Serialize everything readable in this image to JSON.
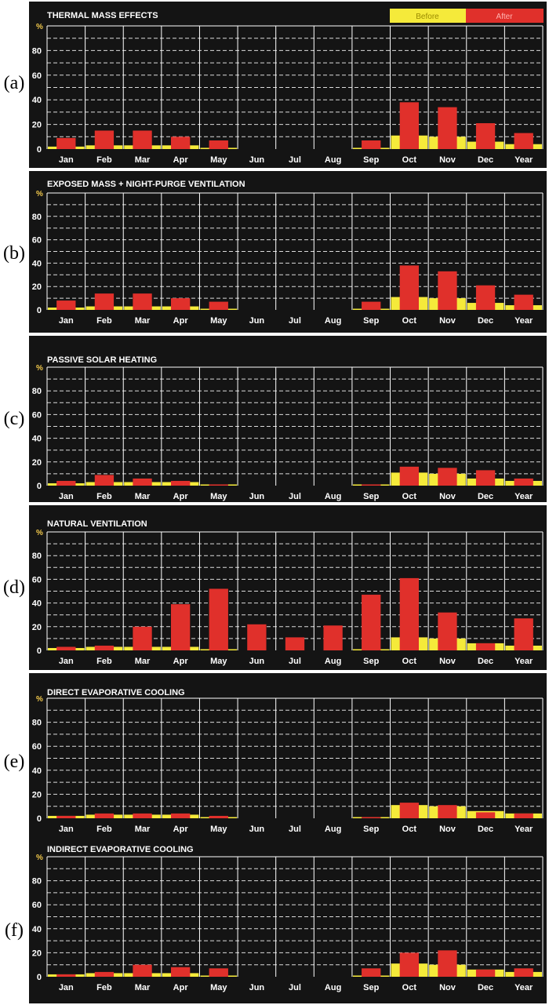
{
  "colors": {
    "background": "#141414",
    "grid": "#ffffff",
    "before": "#f5ea3a",
    "after": "#e0302b",
    "before_text": "#9a8b00",
    "after_text": "#ffb3b0"
  },
  "legend": {
    "before": "Before",
    "after": "After"
  },
  "unit_label": "%",
  "chart_data": [
    {
      "panel_label": "(a)",
      "type": "bar",
      "title": "THERMAL MASS EFFECTS",
      "categories": [
        "Jan",
        "Feb",
        "Mar",
        "Apr",
        "May",
        "Jun",
        "Jul",
        "Aug",
        "Sep",
        "Oct",
        "Nov",
        "Dec",
        "Year"
      ],
      "ylim": [
        0,
        100
      ],
      "yticks": [
        0,
        20,
        40,
        60,
        80
      ],
      "series": [
        {
          "name": "Before",
          "values": [
            2,
            3,
            3,
            3,
            1,
            0,
            0,
            0,
            1,
            11,
            10,
            6,
            4
          ]
        },
        {
          "name": "After",
          "values": [
            9,
            15,
            15,
            10,
            7,
            0,
            0,
            0,
            7,
            38,
            34,
            21,
            13
          ]
        }
      ]
    },
    {
      "panel_label": "(b)",
      "type": "bar",
      "title": "EXPOSED MASS + NIGHT-PURGE VENTILATION",
      "categories": [
        "Jan",
        "Feb",
        "Mar",
        "Apr",
        "May",
        "Jun",
        "Jul",
        "Aug",
        "Sep",
        "Oct",
        "Nov",
        "Dec",
        "Year"
      ],
      "ylim": [
        0,
        100
      ],
      "yticks": [
        0,
        20,
        40,
        60,
        80
      ],
      "series": [
        {
          "name": "Before",
          "values": [
            2,
            3,
            3,
            3,
            1,
            0,
            0,
            0,
            1,
            11,
            10,
            6,
            4
          ]
        },
        {
          "name": "After",
          "values": [
            8,
            14,
            14,
            10,
            7,
            0,
            0,
            0,
            7,
            38,
            33,
            21,
            13
          ]
        }
      ]
    },
    {
      "panel_label": "(c)",
      "type": "bar",
      "title": "PASSIVE SOLAR HEATING",
      "categories": [
        "Jan",
        "Feb",
        "Mar",
        "Apr",
        "May",
        "Jun",
        "Jul",
        "Aug",
        "Sep",
        "Oct",
        "Nov",
        "Dec",
        "Year"
      ],
      "ylim": [
        0,
        100
      ],
      "yticks": [
        0,
        20,
        40,
        60,
        80
      ],
      "series": [
        {
          "name": "Before",
          "values": [
            2,
            3,
            3,
            3,
            1,
            0,
            0,
            0,
            1,
            11,
            10,
            6,
            4
          ]
        },
        {
          "name": "After",
          "values": [
            4,
            9,
            6,
            4,
            1,
            0,
            0,
            0,
            1,
            16,
            15,
            13,
            6
          ]
        }
      ]
    },
    {
      "panel_label": "(d)",
      "type": "bar",
      "title": "NATURAL VENTILATION",
      "categories": [
        "Jan",
        "Feb",
        "Mar",
        "Apr",
        "May",
        "Jun",
        "Jul",
        "Aug",
        "Sep",
        "Oct",
        "Nov",
        "Dec",
        "Year"
      ],
      "ylim": [
        0,
        100
      ],
      "yticks": [
        0,
        20,
        40,
        60,
        80
      ],
      "series": [
        {
          "name": "Before",
          "values": [
            2,
            3,
            3,
            3,
            1,
            0,
            0,
            0,
            1,
            11,
            10,
            6,
            4
          ]
        },
        {
          "name": "After",
          "values": [
            3,
            4,
            20,
            39,
            52,
            22,
            11,
            21,
            47,
            61,
            32,
            6,
            27
          ]
        }
      ]
    },
    {
      "panel_label": "(e)",
      "type": "bar",
      "title": "DIRECT EVAPORATIVE COOLING",
      "categories": [
        "Jan",
        "Feb",
        "Mar",
        "Apr",
        "May",
        "Jun",
        "Jul",
        "Aug",
        "Sep",
        "Oct",
        "Nov",
        "Dec",
        "Year"
      ],
      "ylim": [
        0,
        100
      ],
      "yticks": [
        0,
        20,
        40,
        60,
        80
      ],
      "series": [
        {
          "name": "Before",
          "values": [
            2,
            3,
            3,
            3,
            1,
            0,
            0,
            0,
            1,
            11,
            10,
            6,
            4
          ]
        },
        {
          "name": "After",
          "values": [
            2,
            4,
            4,
            4,
            2,
            0,
            0,
            0,
            1,
            13,
            11,
            5,
            4
          ]
        }
      ]
    },
    {
      "panel_label": "(f)",
      "type": "bar",
      "title": "INDIRECT EVAPORATIVE COOLING",
      "categories": [
        "Jan",
        "Feb",
        "Mar",
        "Apr",
        "May",
        "Jun",
        "Jul",
        "Aug",
        "Sep",
        "Oct",
        "Nov",
        "Dec",
        "Year"
      ],
      "ylim": [
        0,
        100
      ],
      "yticks": [
        0,
        20,
        40,
        60,
        80
      ],
      "series": [
        {
          "name": "Before",
          "values": [
            2,
            3,
            3,
            3,
            1,
            0,
            0,
            0,
            1,
            11,
            10,
            6,
            4
          ]
        },
        {
          "name": "After",
          "values": [
            2,
            4,
            10,
            8,
            7,
            0,
            0,
            0,
            7,
            20,
            22,
            6,
            7
          ]
        }
      ]
    }
  ]
}
